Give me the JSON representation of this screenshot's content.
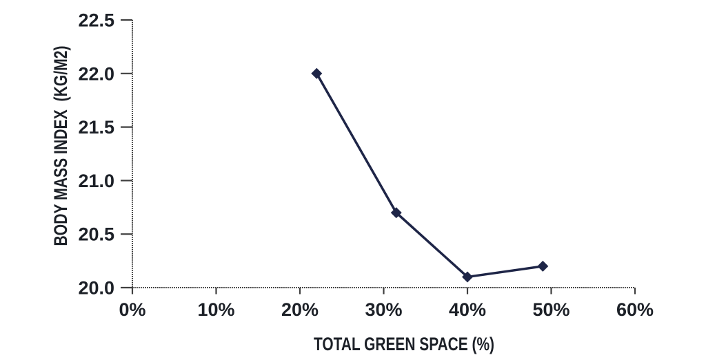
{
  "chart_data": {
    "type": "line",
    "xlabel": "TOTAL GREEN SPACE (%)",
    "ylabel": "BODY MASS INDEX  (KG/M2)",
    "x": [
      22,
      31.5,
      40,
      49
    ],
    "y": [
      22.0,
      20.7,
      20.1,
      20.2
    ],
    "xlim": [
      0,
      60
    ],
    "ylim": [
      20.0,
      22.5
    ],
    "x_ticks": [
      {
        "value": 0,
        "label": "0%"
      },
      {
        "value": 10,
        "label": "10%"
      },
      {
        "value": 20,
        "label": "20%"
      },
      {
        "value": 30,
        "label": "30%"
      },
      {
        "value": 40,
        "label": "40%"
      },
      {
        "value": 50,
        "label": "50%"
      },
      {
        "value": 60,
        "label": "60%"
      }
    ],
    "y_ticks": [
      {
        "value": 22.5,
        "label": "22.5"
      },
      {
        "value": 22.0,
        "label": "22.0"
      },
      {
        "value": 21.5,
        "label": "21.5"
      },
      {
        "value": 21.0,
        "label": "21.0"
      },
      {
        "value": 20.5,
        "label": "20.5"
      },
      {
        "value": 20.0,
        "label": "20.0"
      }
    ],
    "marker": "diamond",
    "grid": false,
    "legend": "none",
    "axis_line_style": "dotted",
    "colors": {
      "series": "#1e2547",
      "axis": "#3f3f3f",
      "text": "#1c2027",
      "background": "#ffffff"
    }
  }
}
